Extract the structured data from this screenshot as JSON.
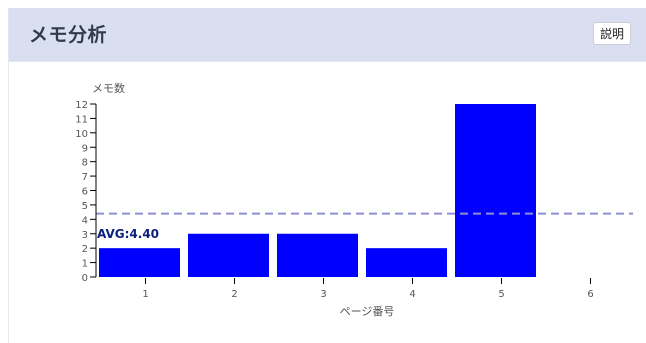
{
  "panel": {
    "title": "メモ分析",
    "help_label": "説明"
  },
  "colors": {
    "bar": "#0000ff",
    "avg_line": "#8f8fd6",
    "avg_label": "#0b1f7d",
    "axis": "#000000",
    "tick_text": "#555555",
    "header_bg": "#d9dff0"
  },
  "chart_data": {
    "type": "bar",
    "title": "",
    "xlabel": "ページ番号",
    "ylabel": "メモ数",
    "categories": [
      "1",
      "2",
      "3",
      "4",
      "5",
      "6"
    ],
    "values": [
      2,
      3,
      3,
      2,
      12,
      null
    ],
    "ylim": [
      0,
      12
    ],
    "yticks": [
      0,
      1,
      2,
      3,
      4,
      5,
      6,
      7,
      8,
      9,
      10,
      11,
      12
    ],
    "average": 4.4,
    "average_label": "AVG:4.40",
    "grid": false,
    "legend": "none"
  }
}
